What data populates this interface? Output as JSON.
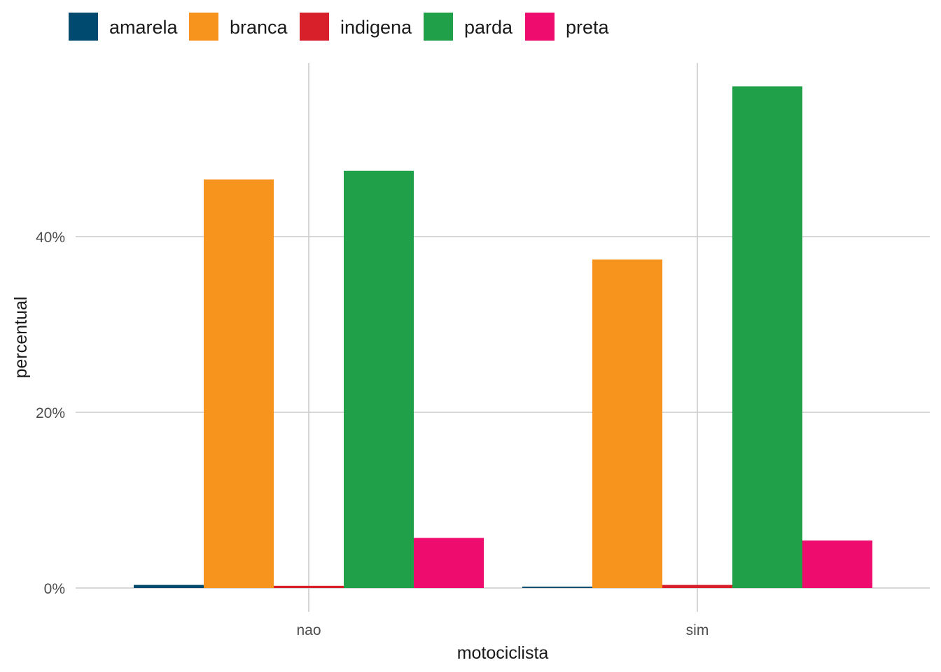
{
  "chart_data": {
    "type": "bar",
    "title": "",
    "xlabel": "motociclista",
    "ylabel": "percentual",
    "categories": [
      "nao",
      "sim"
    ],
    "series": [
      {
        "name": "amarela",
        "color": "#00496F",
        "values": [
          0.35,
          0.15
        ]
      },
      {
        "name": "branca",
        "color": "#F7941E",
        "values": [
          46.5,
          37.4
        ]
      },
      {
        "name": "indigena",
        "color": "#D7202A",
        "values": [
          0.25,
          0.35
        ]
      },
      {
        "name": "parda",
        "color": "#1FA049",
        "values": [
          47.5,
          57.1
        ]
      },
      {
        "name": "preta",
        "color": "#EE0C6E",
        "values": [
          5.7,
          5.4
        ]
      }
    ],
    "ylim": [
      -2.4,
      60
    ],
    "yticks": [
      0,
      20,
      40
    ],
    "ytick_labels": [
      "0%",
      "20%",
      "40%"
    ],
    "grid": true,
    "legend_position": "top-left"
  }
}
